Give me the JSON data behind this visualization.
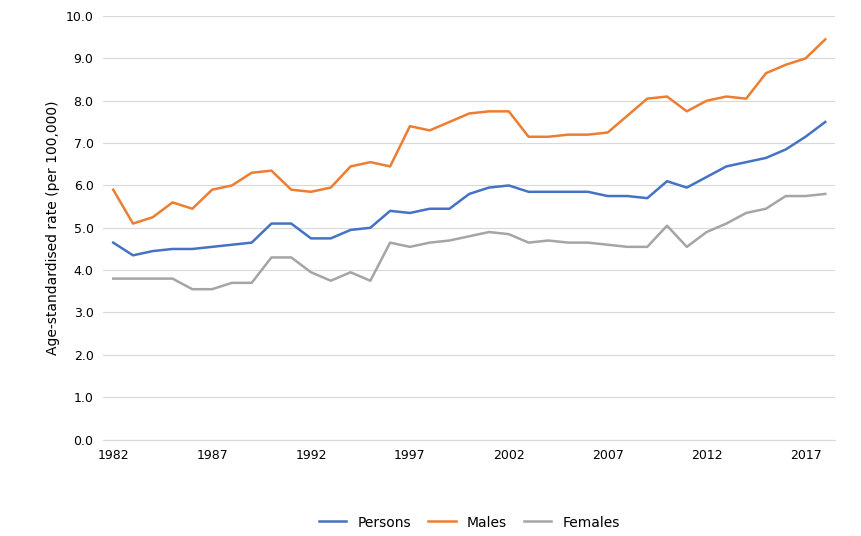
{
  "years": [
    1982,
    1983,
    1984,
    1985,
    1986,
    1987,
    1988,
    1989,
    1990,
    1991,
    1992,
    1993,
    1994,
    1995,
    1996,
    1997,
    1998,
    1999,
    2000,
    2001,
    2002,
    2003,
    2004,
    2005,
    2006,
    2007,
    2008,
    2009,
    2010,
    2011,
    2012,
    2013,
    2014,
    2015,
    2016,
    2017,
    2018
  ],
  "persons": [
    4.65,
    4.35,
    4.45,
    4.5,
    4.5,
    4.55,
    4.6,
    4.65,
    5.1,
    5.1,
    4.75,
    4.75,
    4.95,
    5.0,
    5.4,
    5.35,
    5.45,
    5.45,
    5.8,
    5.95,
    6.0,
    5.85,
    5.85,
    5.85,
    5.85,
    5.75,
    5.75,
    5.7,
    6.1,
    5.95,
    6.2,
    6.45,
    6.55,
    6.65,
    6.85,
    7.15,
    7.5
  ],
  "males": [
    5.9,
    5.1,
    5.25,
    5.6,
    5.45,
    5.9,
    6.0,
    6.3,
    6.35,
    5.9,
    5.85,
    5.95,
    6.45,
    6.55,
    6.45,
    7.4,
    7.3,
    7.5,
    7.7,
    7.75,
    7.75,
    7.15,
    7.15,
    7.2,
    7.2,
    7.25,
    7.65,
    8.05,
    8.1,
    7.75,
    8.0,
    8.1,
    8.05,
    8.65,
    8.85,
    9.0,
    9.45
  ],
  "females": [
    3.8,
    3.8,
    3.8,
    3.8,
    3.55,
    3.55,
    3.7,
    3.7,
    4.3,
    4.3,
    3.95,
    3.75,
    3.95,
    3.75,
    4.65,
    4.55,
    4.65,
    4.7,
    4.8,
    4.9,
    4.85,
    4.65,
    4.7,
    4.65,
    4.65,
    4.6,
    4.55,
    4.55,
    5.05,
    4.55,
    4.9,
    5.1,
    5.35,
    5.45,
    5.75,
    5.75,
    5.8
  ],
  "persons_color": "#4472C4",
  "males_color": "#ED7D31",
  "females_color": "#A5A5A5",
  "ylabel": "Age-standardised rate (per 100,000)",
  "ylim": [
    0.0,
    10.0
  ],
  "yticks": [
    0.0,
    1.0,
    2.0,
    3.0,
    4.0,
    5.0,
    6.0,
    7.0,
    8.0,
    9.0,
    10.0
  ],
  "xticks": [
    1982,
    1987,
    1992,
    1997,
    2002,
    2007,
    2012,
    2017
  ],
  "legend_labels": [
    "Persons",
    "Males",
    "Females"
  ],
  "line_width": 1.8,
  "background_color": "#FFFFFF",
  "grid_color": "#D9D9D9",
  "spine_color": "#D9D9D9",
  "tick_fontsize": 9,
  "ylabel_fontsize": 10,
  "legend_fontsize": 10
}
